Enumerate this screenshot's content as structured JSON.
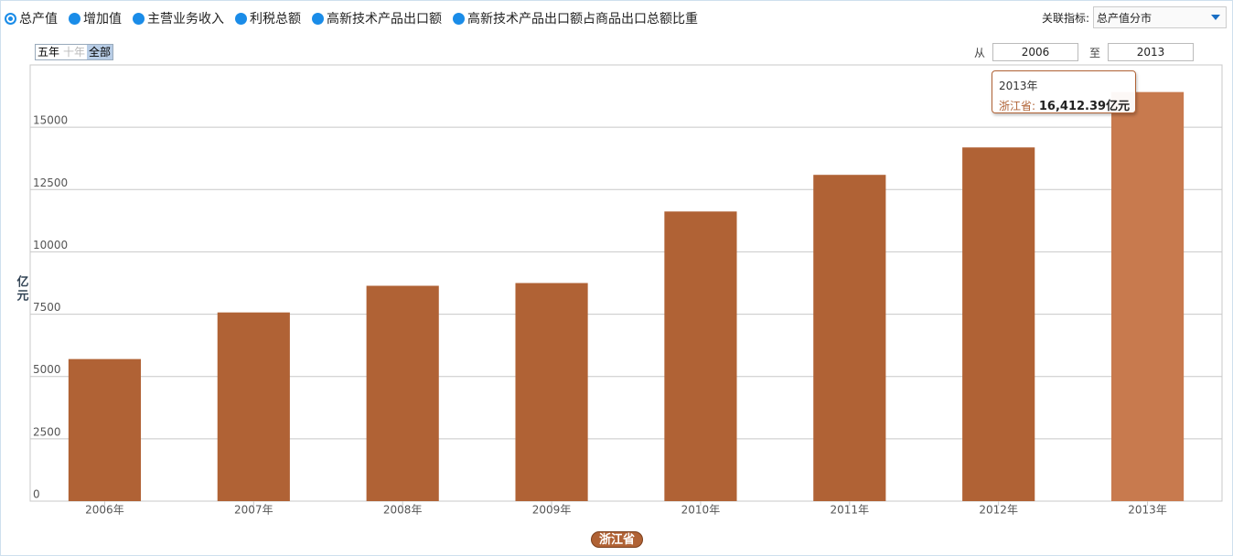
{
  "controls": {
    "metrics": [
      "总产值",
      "增加值",
      "主营业务收入",
      "利税总额",
      "高新技术产品出口额",
      "高新技术产品出口额占商品出口总额比重"
    ],
    "selected_metric": 0,
    "related_label": "关联指标:",
    "related_value": "总产值分市",
    "ranges": [
      "五年",
      "十年",
      "全部"
    ],
    "disabled_range": 1,
    "selected_range": 2,
    "from_label": "从",
    "from": 2006,
    "to_label": "至",
    "to": 2013
  },
  "chart_data": {
    "type": "bar",
    "y_label": "亿元",
    "categories": [
      "2006年",
      "2007年",
      "2008年",
      "2009年",
      "2010年",
      "2011年",
      "2012年",
      "2013年"
    ],
    "series": [
      {
        "name": "浙江省",
        "color": "#b06235",
        "highlight_color": "#c87a4e",
        "values": [
          5700,
          7570,
          8640,
          8750,
          11620,
          13090,
          14190,
          16412.39
        ],
        "value_labels": [
          null,
          null,
          null,
          null,
          null,
          null,
          null,
          "16,412.39亿元"
        ]
      }
    ],
    "active": 7,
    "ylim": [
      0,
      17500
    ],
    "yticks": [
      0,
      2500,
      5000,
      7500,
      10000,
      12500,
      15000
    ],
    "grid": true
  }
}
